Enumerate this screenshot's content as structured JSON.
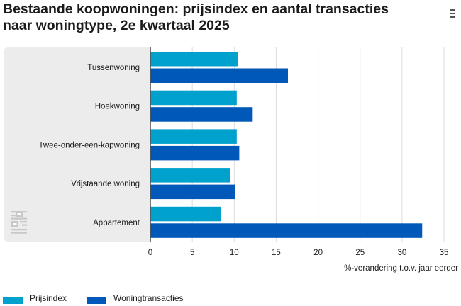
{
  "title_lines": [
    "Bestaande koopwoningen: prijsindex en aantal transacties",
    "naar woningtype, 2e kwartaal 2025"
  ],
  "menu_icon": "hamburger-menu-icon",
  "logo_icon": "cbs-logo-icon",
  "chart_data": {
    "type": "bar",
    "orientation": "horizontal",
    "title": "Bestaande koopwoningen: prijsindex en aantal transacties naar woningtype, 2e kwartaal 2025",
    "categories": [
      "Tussenwoning",
      "Hoekwoning",
      "Twee-onder-een-kapwoning",
      "Vrijstaande woning",
      "Appartement"
    ],
    "series": [
      {
        "name": "Prijsindex",
        "color": "#00a1cd",
        "values": [
          10.4,
          10.3,
          10.3,
          9.5,
          8.4
        ]
      },
      {
        "name": "Woningtransacties",
        "color": "#0058b8",
        "values": [
          16.4,
          12.2,
          10.6,
          10.1,
          32.4
        ]
      }
    ],
    "xlim": [
      0,
      35
    ],
    "xticks": [
      0,
      5,
      10,
      15,
      20,
      25,
      30,
      35
    ],
    "xlabel": "%-verandering t.o.v. jaar eerder",
    "ylabel": "",
    "grid": true,
    "legend_position": "bottom-left",
    "plot_background": "#ececec"
  }
}
